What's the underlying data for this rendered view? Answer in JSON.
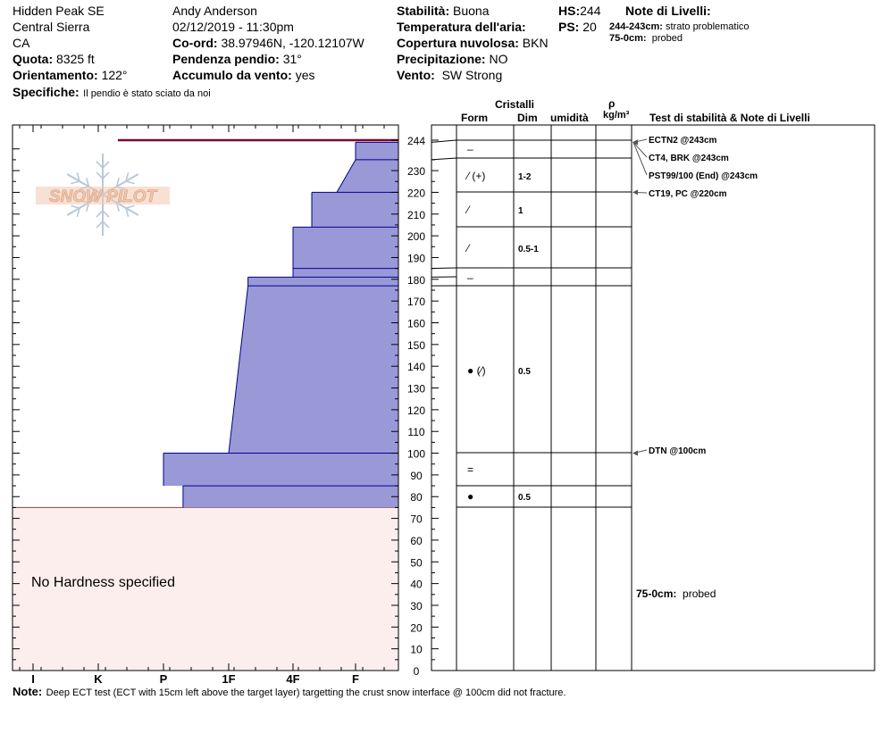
{
  "header": {
    "col1": {
      "location": "Hidden Peak SE",
      "range": "Central Sierra",
      "state": "CA",
      "elevation_label": "Quota:",
      "elevation": "8325 ft",
      "aspect_label": "Orientamento:",
      "aspect": "122°",
      "specifics_label": "Specifiche:",
      "specifics": "Il pendio è stato sciato da noi"
    },
    "col2": {
      "observer": "Andy Anderson",
      "datetime": "02/12/2019 - 11:30pm",
      "coord_label": "Co-ord:",
      "coord": "38.97946N, -120.12107W",
      "slope_label": "Pendenza pendio:",
      "slope": "31°",
      "wind_loading_label": "Accumulo da vento:",
      "wind_loading": "yes"
    },
    "col3": {
      "stability_label": "Stabilità:",
      "stability": "Buona",
      "air_temp_label": "Temperatura dell'aria:",
      "air_temp": "",
      "cloud_label": "Copertura nuvolosa:",
      "cloud": "BKN",
      "precip_label": "Precipitazione:",
      "precip": "NO",
      "wind_label": "Vento:",
      "wind": "SW Strong"
    },
    "col4": {
      "hs_label": "HS:",
      "hs": "244",
      "ps_label": "PS:",
      "ps": "20"
    },
    "layer_notes": {
      "title": "Note di Livelli:",
      "items": [
        {
          "range": "244-243cm:",
          "text": "strato problematico"
        },
        {
          "range": "75-0cm:",
          "text": "probed"
        }
      ]
    }
  },
  "logo_text": "SNOW PILOT",
  "columns": {
    "crystals": "Cristalli",
    "form": "Form",
    "dim": "Dim",
    "moisture": "umidità",
    "rho": "ρ",
    "density_unit": "kg/m³",
    "stability_notes": "Test di stabilità & Note di Livelli"
  },
  "no_hardness_text": "No Hardness specified",
  "note_label": "Note:",
  "note": "Deep ECT test (ECT with 15cm left above the target layer) targetting the crust snow interface @ 100cm did not fracture.",
  "colors": {
    "layer_fill": "#9999d8",
    "layer_stroke": "#00008b",
    "no_hardness_fill": "#fdeeee",
    "no_hardness_stroke": "#a04040",
    "problem_layer": "#800030",
    "logo": "#f0c8b0",
    "logo_snowflake": "#b8c8d8"
  },
  "chart_data": {
    "type": "snow_profile",
    "depth_axis": {
      "min": 0,
      "max": 244,
      "ticks": [
        0,
        10,
        20,
        30,
        40,
        50,
        60,
        70,
        80,
        90,
        100,
        110,
        120,
        130,
        140,
        150,
        160,
        170,
        180,
        190,
        200,
        210,
        220,
        230,
        244
      ],
      "tick_labels": [
        "0",
        "10",
        "20",
        "30",
        "40",
        "50",
        "60",
        "70",
        "80",
        "90",
        "100",
        "110",
        "120",
        "130",
        "140",
        "150",
        "160",
        "170",
        "180",
        "190",
        "200",
        "210",
        "220",
        "230",
        "244"
      ]
    },
    "hardness_axis": {
      "labels": [
        "I",
        "K",
        "P",
        "1F",
        "4F",
        "F"
      ],
      "values": [
        6,
        5,
        4,
        3,
        2,
        1
      ]
    },
    "layers": [
      {
        "top": 244,
        "bottom": 243,
        "hardness_top": 4.7,
        "hardness_bottom": 4.7,
        "form": "",
        "dim": ""
      },
      {
        "top": 243,
        "bottom": 235,
        "hardness_top": 1.0,
        "hardness_bottom": 1.0,
        "form": "–",
        "dim": ""
      },
      {
        "top": 235,
        "bottom": 220,
        "hardness_top": 1.0,
        "hardness_bottom": 1.3,
        "form": "⁄ (+)",
        "dim": "1-2"
      },
      {
        "top": 220,
        "bottom": 204,
        "hardness_top": 1.7,
        "hardness_bottom": 1.7,
        "form": "⁄",
        "dim": "1"
      },
      {
        "top": 204,
        "bottom": 185,
        "hardness_top": 2.0,
        "hardness_bottom": 2.0,
        "form": "⁄",
        "dim": "0.5-1"
      },
      {
        "top": 185,
        "bottom": 181,
        "hardness_top": 2.0,
        "hardness_bottom": 2.0,
        "form": "",
        "dim": ""
      },
      {
        "top": 181,
        "bottom": 177,
        "hardness_top": 2.7,
        "hardness_bottom": 2.7,
        "form": "–",
        "dim": ""
      },
      {
        "top": 177,
        "bottom": 100,
        "hardness_top": 2.7,
        "hardness_bottom": 3.0,
        "form": "● (⁄)",
        "dim": "0.5"
      },
      {
        "top": 100,
        "bottom": 85,
        "hardness_top": 4.0,
        "hardness_bottom": 4.0,
        "form": "=",
        "dim": ""
      },
      {
        "top": 85,
        "bottom": 75,
        "hardness_top": 3.7,
        "hardness_bottom": 3.7,
        "form": "●",
        "dim": "0.5"
      }
    ],
    "no_hardness_range": [
      0,
      75
    ],
    "stability_tests": [
      {
        "depth": 243,
        "label": "ECTN2 @243cm"
      },
      {
        "depth": 243,
        "label": "CT4, BRK @243cm"
      },
      {
        "depth": 243,
        "label": "PST99/100 (End) @243cm"
      },
      {
        "depth": 220,
        "label": "CT19, PC @220cm"
      },
      {
        "depth": 100,
        "label": "DTN @100cm"
      }
    ],
    "bottom_note": {
      "range": "75-0cm:",
      "text": "probed"
    }
  }
}
